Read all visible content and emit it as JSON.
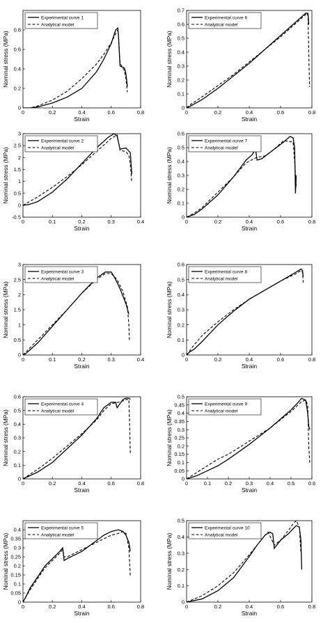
{
  "axis_label_style": {
    "line_color": "#000000",
    "background": "#ffffff"
  },
  "chart_data": [
    {
      "type": "line",
      "xlabel": "Strain",
      "ylabel": "Nominal stress (MPa)",
      "xlim": [
        0,
        0.8
      ],
      "ylim": [
        0,
        1
      ],
      "xticks": [
        "0",
        "0.2",
        "0.4",
        "0.6",
        "0.8"
      ],
      "yticks": [
        "0",
        "0.2",
        "0.4",
        "0.6",
        "0.8"
      ],
      "ytick_values": [
        0,
        0.2,
        0.4,
        0.6,
        0.8
      ],
      "grid": false,
      "legend_position": "top-left",
      "series": [
        {
          "name": "Experimental curve 1",
          "style": "solid",
          "x": [
            0,
            0.05,
            0.1,
            0.2,
            0.3,
            0.4,
            0.5,
            0.55,
            0.6,
            0.63,
            0.645,
            0.65,
            0.66,
            0.69,
            0.7,
            0.71
          ],
          "y": [
            0,
            0,
            0.01,
            0.05,
            0.11,
            0.2,
            0.37,
            0.5,
            0.66,
            0.8,
            0.82,
            0.72,
            0.43,
            0.41,
            0.35,
            0.22
          ]
        },
        {
          "name": "Analytical model",
          "style": "dashed",
          "x": [
            0,
            0.05,
            0.1,
            0.2,
            0.3,
            0.4,
            0.5,
            0.55,
            0.6,
            0.63,
            0.645,
            0.65,
            0.66,
            0.69,
            0.7,
            0.71
          ],
          "y": [
            0,
            0,
            0.02,
            0.08,
            0.17,
            0.3,
            0.45,
            0.55,
            0.67,
            0.76,
            0.8,
            0.74,
            0.46,
            0.38,
            0.3,
            0.16
          ]
        }
      ]
    },
    {
      "type": "line",
      "xlabel": "Strain",
      "ylabel": "Nominal stress (MPa)",
      "xlim": [
        0,
        0.8
      ],
      "ylim": [
        0,
        0.7
      ],
      "xticks": [
        "0",
        "0.2",
        "0.4",
        "0.6",
        "0.8"
      ],
      "yticks": [
        "0",
        "0.1",
        "0.2",
        "0.3",
        "0.4",
        "0.5",
        "0.6",
        "0.7"
      ],
      "ytick_values": [
        0,
        0.1,
        0.2,
        0.3,
        0.4,
        0.5,
        0.6,
        0.7
      ],
      "grid": false,
      "legend_position": "top-left",
      "series": [
        {
          "name": "Experimental curve 6",
          "style": "solid",
          "x": [
            0,
            0.02,
            0.1,
            0.2,
            0.3,
            0.4,
            0.5,
            0.6,
            0.7,
            0.74,
            0.76,
            0.775,
            0.78
          ],
          "y": [
            0,
            0.01,
            0.06,
            0.14,
            0.23,
            0.32,
            0.42,
            0.52,
            0.62,
            0.66,
            0.68,
            0.68,
            0.6
          ]
        },
        {
          "name": "Analytical model",
          "style": "dashed",
          "x": [
            0,
            0.02,
            0.1,
            0.2,
            0.3,
            0.4,
            0.5,
            0.6,
            0.7,
            0.74,
            0.77,
            0.775,
            0.78,
            0.785
          ],
          "y": [
            0,
            0.02,
            0.08,
            0.16,
            0.24,
            0.33,
            0.42,
            0.51,
            0.61,
            0.65,
            0.68,
            0.66,
            0.4,
            0.15
          ]
        }
      ]
    },
    {
      "type": "line",
      "xlabel": "Strain",
      "ylabel": "Nominal stress (MPa)",
      "xlim": [
        0,
        0.4
      ],
      "ylim": [
        -0.5,
        3
      ],
      "xticks": [
        "0",
        "0.1",
        "0.2",
        "0.3",
        "0.4"
      ],
      "yticks": [
        "-0.5",
        "0",
        "0.5",
        "1",
        "1.5",
        "2",
        "2.5",
        "3"
      ],
      "ytick_values": [
        -0.5,
        0,
        0.5,
        1,
        1.5,
        2,
        2.5,
        3
      ],
      "grid": false,
      "legend_position": "top-left",
      "series": [
        {
          "name": "Experimental curve 2",
          "style": "solid",
          "x": [
            0,
            0.02,
            0.05,
            0.1,
            0.15,
            0.2,
            0.25,
            0.29,
            0.31,
            0.32,
            0.33,
            0.35,
            0.365,
            0.37
          ],
          "y": [
            0,
            0.03,
            0.15,
            0.55,
            1.1,
            1.75,
            2.4,
            2.85,
            3.0,
            2.9,
            2.35,
            2.4,
            2.2,
            1.3
          ]
        },
        {
          "name": "Analytical model",
          "style": "dashed",
          "x": [
            0,
            0.05,
            0.1,
            0.15,
            0.2,
            0.25,
            0.3,
            0.32,
            0.33,
            0.35,
            0.36,
            0.365,
            0.37
          ],
          "y": [
            0,
            0.35,
            0.75,
            1.2,
            1.7,
            2.25,
            2.8,
            2.95,
            2.3,
            2.25,
            2.1,
            1.7,
            0.95
          ]
        }
      ]
    },
    {
      "type": "line",
      "xlabel": "Strain",
      "ylabel": "Nominal stress (MPa)",
      "xlim": [
        0,
        0.8
      ],
      "ylim": [
        0,
        0.6
      ],
      "xticks": [
        "0",
        "0.2",
        "0.4",
        "0.6",
        "0.8"
      ],
      "yticks": [
        "0",
        "0.1",
        "0.2",
        "0.3",
        "0.4",
        "0.5",
        "0.6"
      ],
      "ytick_values": [
        0,
        0.1,
        0.2,
        0.3,
        0.4,
        0.5,
        0.6
      ],
      "grid": false,
      "legend_position": "top-left",
      "series": [
        {
          "name": "Experimental curve 7",
          "style": "solid",
          "x": [
            0,
            0.05,
            0.1,
            0.2,
            0.3,
            0.38,
            0.42,
            0.44,
            0.45,
            0.48,
            0.55,
            0.62,
            0.66,
            0.68,
            0.69,
            0.695,
            0.7
          ],
          "y": [
            0,
            0.02,
            0.06,
            0.16,
            0.29,
            0.41,
            0.45,
            0.49,
            0.41,
            0.42,
            0.48,
            0.54,
            0.58,
            0.57,
            0.5,
            0.17,
            0.3
          ]
        },
        {
          "name": "Analytical model",
          "style": "dashed",
          "x": [
            0,
            0.05,
            0.1,
            0.2,
            0.3,
            0.38,
            0.43,
            0.45,
            0.5,
            0.55,
            0.62,
            0.68,
            0.69,
            0.7
          ],
          "y": [
            0,
            0.03,
            0.07,
            0.18,
            0.29,
            0.39,
            0.42,
            0.43,
            0.44,
            0.48,
            0.55,
            0.54,
            0.4,
            0.22
          ]
        }
      ]
    },
    {
      "type": "line",
      "xlabel": "Strain",
      "ylabel": "Nominal stress (MPa)",
      "xlim": [
        0,
        0.4
      ],
      "ylim": [
        0,
        3
      ],
      "xticks": [
        "0",
        "0.1",
        "0.2",
        "0.3",
        "0.4"
      ],
      "yticks": [
        "0",
        "0.5",
        "1",
        "1.5",
        "2",
        "2.5",
        "3"
      ],
      "ytick_values": [
        0,
        0.5,
        1,
        1.5,
        2,
        2.5,
        3
      ],
      "grid": false,
      "legend_position": "top-left",
      "series": [
        {
          "name": "Experimental curve 3",
          "style": "solid",
          "x": [
            0,
            0.01,
            0.05,
            0.1,
            0.15,
            0.2,
            0.25,
            0.28,
            0.3,
            0.31,
            0.33,
            0.35,
            0.36
          ],
          "y": [
            0,
            0.05,
            0.4,
            0.95,
            1.5,
            2.05,
            2.55,
            2.75,
            2.75,
            2.6,
            2.2,
            1.7,
            1.35
          ]
        },
        {
          "name": "Analytical model",
          "style": "dashed",
          "x": [
            0,
            0.05,
            0.1,
            0.15,
            0.2,
            0.25,
            0.28,
            0.3,
            0.32,
            0.34,
            0.355,
            0.36,
            0.362
          ],
          "y": [
            0,
            0.5,
            1.0,
            1.5,
            2.05,
            2.5,
            2.7,
            2.7,
            2.5,
            2.1,
            1.6,
            1.0,
            0.45
          ]
        }
      ]
    },
    {
      "type": "line",
      "xlabel": "Strain",
      "ylabel": "Nominal stress (MPa)",
      "xlim": [
        0,
        0.8
      ],
      "ylim": [
        0,
        0.6
      ],
      "xticks": [
        "0",
        "0.2",
        "0.4",
        "0.6",
        "0.8"
      ],
      "yticks": [
        "0",
        "0.1",
        "0.2",
        "0.3",
        "0.4",
        "0.5",
        "0.6"
      ],
      "ytick_values": [
        0,
        0.1,
        0.2,
        0.3,
        0.4,
        0.5,
        0.6
      ],
      "grid": false,
      "legend_position": "top-left",
      "series": [
        {
          "name": "Experimental curve 8",
          "style": "solid",
          "x": [
            0,
            0.02,
            0.05,
            0.1,
            0.2,
            0.3,
            0.4,
            0.5,
            0.6,
            0.7,
            0.73,
            0.74,
            0.745
          ],
          "y": [
            0,
            0.02,
            0.04,
            0.09,
            0.2,
            0.29,
            0.37,
            0.43,
            0.49,
            0.55,
            0.57,
            0.56,
            0.52
          ]
        },
        {
          "name": "Analytical model",
          "style": "dashed",
          "x": [
            0,
            0.05,
            0.1,
            0.2,
            0.3,
            0.4,
            0.5,
            0.6,
            0.7,
            0.73,
            0.74,
            0.745
          ],
          "y": [
            0,
            0.07,
            0.13,
            0.22,
            0.3,
            0.37,
            0.43,
            0.49,
            0.54,
            0.56,
            0.55,
            0.48
          ]
        }
      ]
    },
    {
      "type": "line",
      "xlabel": "Strain",
      "ylabel": "Nominal stress (MPa)",
      "xlim": [
        0,
        0.8
      ],
      "ylim": [
        0,
        0.6
      ],
      "xticks": [
        "0",
        "0.2",
        "0.4",
        "0.6",
        "0.8"
      ],
      "yticks": [
        "0",
        "0.1",
        "0.2",
        "0.3",
        "0.4",
        "0.5",
        "0.6"
      ],
      "ytick_values": [
        0,
        0.1,
        0.2,
        0.3,
        0.4,
        0.5,
        0.6
      ],
      "grid": false,
      "legend_position": "top-left",
      "series": [
        {
          "name": "Experimental curve 4",
          "style": "solid",
          "x": [
            0,
            0.1,
            0.2,
            0.3,
            0.4,
            0.5,
            0.55,
            0.6,
            0.63,
            0.64,
            0.68,
            0.7,
            0.72,
            0.73
          ],
          "y": [
            0,
            0.05,
            0.12,
            0.22,
            0.32,
            0.44,
            0.52,
            0.56,
            0.56,
            0.52,
            0.58,
            0.59,
            0.59,
            0.58
          ]
        },
        {
          "name": "Analytical model",
          "style": "dashed",
          "x": [
            0,
            0.1,
            0.2,
            0.3,
            0.4,
            0.5,
            0.55,
            0.6,
            0.65,
            0.68,
            0.7,
            0.72,
            0.725,
            0.73
          ],
          "y": [
            0,
            0.07,
            0.15,
            0.24,
            0.33,
            0.43,
            0.5,
            0.55,
            0.56,
            0.57,
            0.58,
            0.58,
            0.4,
            0.18
          ]
        }
      ]
    },
    {
      "type": "line",
      "xlabel": "Strain",
      "ylabel": "Nominal stress (MPa)",
      "xlim": [
        0,
        0.6
      ],
      "ylim": [
        0,
        0.5
      ],
      "xticks": [
        "0",
        "0.1",
        "0.2",
        "0.3",
        "0.4",
        "0.5",
        "0.6"
      ],
      "yticks": [
        "0",
        "0.05",
        "0.1",
        "0.15",
        "0.2",
        "0.25",
        "0.3",
        "0.35",
        "0.4",
        "0.45",
        "0.5"
      ],
      "ytick_values": [
        0,
        0.05,
        0.1,
        0.15,
        0.2,
        0.25,
        0.3,
        0.35,
        0.4,
        0.45,
        0.5
      ],
      "grid": false,
      "legend_position": "top-left",
      "series": [
        {
          "name": "Experimental curve 9",
          "style": "solid",
          "x": [
            0,
            0.05,
            0.1,
            0.15,
            0.2,
            0.3,
            0.4,
            0.5,
            0.53,
            0.55,
            0.57,
            0.58,
            0.585,
            0.59
          ],
          "y": [
            0,
            0.02,
            0.05,
            0.08,
            0.12,
            0.21,
            0.31,
            0.42,
            0.46,
            0.49,
            0.48,
            0.4,
            0.32,
            0.3
          ]
        },
        {
          "name": "Analytical model",
          "style": "dashed",
          "x": [
            0,
            0.05,
            0.1,
            0.15,
            0.2,
            0.3,
            0.4,
            0.5,
            0.55,
            0.57,
            0.58,
            0.585,
            0.59
          ],
          "y": [
            0,
            0.04,
            0.08,
            0.12,
            0.15,
            0.23,
            0.31,
            0.41,
            0.47,
            0.48,
            0.45,
            0.2,
            0.09
          ]
        }
      ]
    },
    {
      "type": "line",
      "xlabel": "Strain",
      "ylabel": "Nominal stress (MPa)",
      "xlim": [
        0,
        0.8
      ],
      "ylim": [
        0,
        0.45
      ],
      "xticks": [
        "0",
        "0.2",
        "0.4",
        "0.6",
        "0.8"
      ],
      "yticks": [
        "0",
        "0.05",
        "0.1",
        "0.15",
        "0.2",
        "0.25",
        "0.3",
        "0.35",
        "0.4"
      ],
      "ytick_values": [
        0,
        0.05,
        0.1,
        0.15,
        0.2,
        0.25,
        0.3,
        0.35,
        0.4
      ],
      "grid": false,
      "legend_position": "top-left",
      "series": [
        {
          "name": "Experimental curve 5",
          "style": "solid",
          "x": [
            0,
            0.02,
            0.05,
            0.1,
            0.15,
            0.2,
            0.25,
            0.27,
            0.28,
            0.3,
            0.4,
            0.5,
            0.55,
            0.6,
            0.65,
            0.68,
            0.7,
            0.72,
            0.73
          ],
          "y": [
            0,
            0.03,
            0.08,
            0.14,
            0.2,
            0.24,
            0.28,
            0.3,
            0.23,
            0.24,
            0.28,
            0.34,
            0.37,
            0.39,
            0.4,
            0.39,
            0.37,
            0.33,
            0.28
          ]
        },
        {
          "name": "Analytical model",
          "style": "dashed",
          "x": [
            0,
            0.02,
            0.05,
            0.1,
            0.15,
            0.2,
            0.25,
            0.27,
            0.28,
            0.3,
            0.4,
            0.5,
            0.6,
            0.65,
            0.68,
            0.7,
            0.72,
            0.73
          ],
          "y": [
            0,
            0.03,
            0.07,
            0.13,
            0.19,
            0.23,
            0.27,
            0.29,
            0.25,
            0.25,
            0.29,
            0.33,
            0.37,
            0.38,
            0.39,
            0.38,
            0.3,
            0.14
          ]
        }
      ]
    },
    {
      "type": "line",
      "xlabel": "Strain",
      "ylabel": "Nominal stress (MPa)",
      "xlim": [
        0,
        0.8
      ],
      "ylim": [
        0,
        0.5
      ],
      "xticks": [
        "0",
        "0.2",
        "0.4",
        "0.6",
        "0.8"
      ],
      "yticks": [
        "0",
        "0.1",
        "0.2",
        "0.3",
        "0.4",
        "0.5"
      ],
      "ytick_values": [
        0,
        0.1,
        0.2,
        0.3,
        0.4,
        0.5
      ],
      "grid": false,
      "legend_position": "top-left",
      "series": [
        {
          "name": "Experimental curve 10",
          "style": "solid",
          "x": [
            0,
            0.1,
            0.2,
            0.3,
            0.4,
            0.45,
            0.5,
            0.53,
            0.55,
            0.56,
            0.6,
            0.65,
            0.7,
            0.72,
            0.73,
            0.735
          ],
          "y": [
            0,
            0.02,
            0.07,
            0.15,
            0.28,
            0.35,
            0.41,
            0.43,
            0.42,
            0.33,
            0.38,
            0.42,
            0.47,
            0.46,
            0.38,
            0.2
          ]
        },
        {
          "name": "Analytical model",
          "style": "dashed",
          "x": [
            0,
            0.1,
            0.2,
            0.3,
            0.4,
            0.45,
            0.5,
            0.52,
            0.55,
            0.56,
            0.6,
            0.65,
            0.68,
            0.7,
            0.72,
            0.73
          ],
          "y": [
            0,
            0.04,
            0.1,
            0.18,
            0.29,
            0.35,
            0.41,
            0.43,
            0.37,
            0.35,
            0.38,
            0.44,
            0.48,
            0.5,
            0.46,
            0.3
          ]
        }
      ]
    }
  ]
}
